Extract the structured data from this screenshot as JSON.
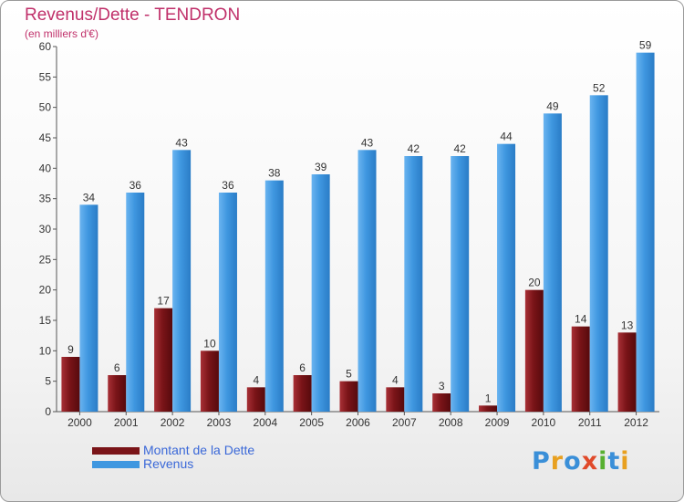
{
  "title": "Revenus/Dette - TENDRON",
  "subtitle": "(en milliers d'€)",
  "colors": {
    "title": "#c0306a",
    "dette": "#7a1418",
    "revenus": "#3f97e0",
    "legend_text": "#3a68d8"
  },
  "chart_data": {
    "type": "bar",
    "title": "Revenus/Dette - TENDRON",
    "subtitle": "(en milliers d'€)",
    "categories": [
      "2000",
      "2001",
      "2002",
      "2003",
      "2004",
      "2005",
      "2006",
      "2007",
      "2008",
      "2009",
      "2010",
      "2011",
      "2012"
    ],
    "series": [
      {
        "name": "Montant de la Dette",
        "values": [
          9,
          6,
          17,
          10,
          4,
          6,
          5,
          4,
          3,
          1,
          20,
          14,
          13
        ]
      },
      {
        "name": "Revenus",
        "values": [
          34,
          36,
          43,
          36,
          38,
          39,
          43,
          42,
          42,
          44,
          49,
          52,
          59
        ]
      }
    ],
    "yticks": [
      0,
      5,
      10,
      15,
      20,
      25,
      30,
      35,
      40,
      45,
      50,
      55,
      60
    ],
    "ylim": [
      0,
      60
    ],
    "xlabel": "",
    "ylabel": "",
    "grid": false,
    "legend_position": "bottom-left"
  },
  "legend": {
    "items": [
      {
        "label": "Montant de la Dette"
      },
      {
        "label": "Revenus"
      }
    ]
  },
  "logo": {
    "text": "Proxiti",
    "letters": [
      {
        "char": "P",
        "color": "#3a8fd8"
      },
      {
        "char": "r",
        "color": "#e8a020"
      },
      {
        "char": "o",
        "color": "#3a8fd8"
      },
      {
        "char": "x",
        "color": "#e04a2a"
      },
      {
        "char": "i",
        "color": "#58b030"
      },
      {
        "char": "t",
        "color": "#3a8fd8"
      },
      {
        "char": "i",
        "color": "#e8a020"
      }
    ]
  }
}
